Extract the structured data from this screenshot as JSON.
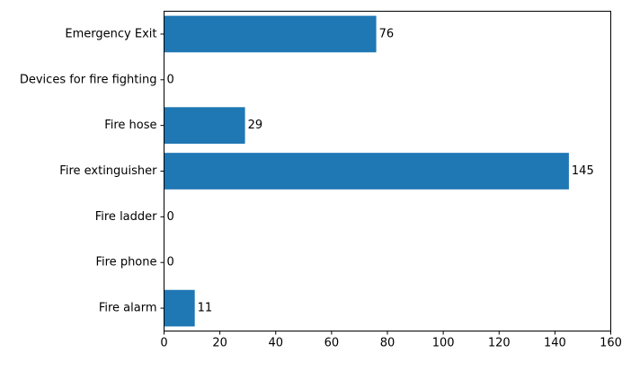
{
  "chart_data": {
    "type": "bar",
    "orientation": "horizontal",
    "categories": [
      "Emergency Exit",
      "Devices for fire fighting",
      "Fire hose",
      "Fire extinguisher",
      "Fire ladder",
      "Fire phone",
      "Fire alarm"
    ],
    "values": [
      76,
      0,
      29,
      145,
      0,
      0,
      11
    ],
    "data_labels": [
      "76",
      "0",
      "29",
      "145",
      "0",
      "0",
      "11"
    ],
    "xlim": [
      0,
      160
    ],
    "xticks": [
      0,
      20,
      40,
      60,
      80,
      100,
      120,
      140,
      160
    ],
    "title": "",
    "xlabel": "",
    "ylabel": "",
    "grid": false,
    "legend": "none",
    "bar_color": "#1f77b4"
  }
}
